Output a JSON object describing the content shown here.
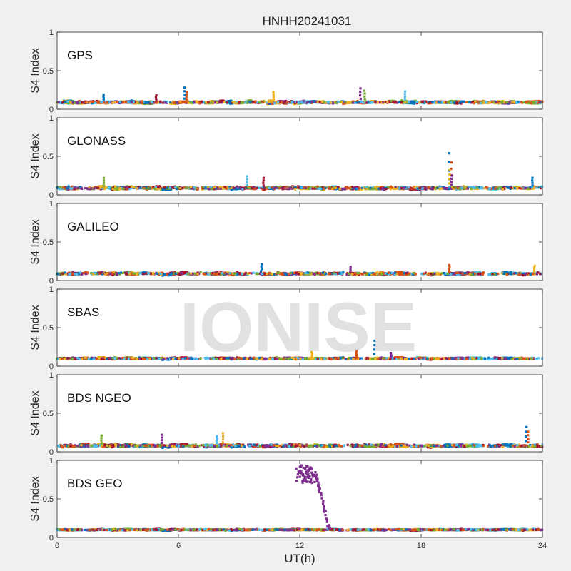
{
  "figure": {
    "title": "HNHH20241031",
    "xlabel": "UT(h)",
    "watermark": "IONISE"
  },
  "chart_data": {
    "type": "scatter",
    "xlim": [
      0,
      24
    ],
    "ylim": [
      0,
      1
    ],
    "xticks": [
      0,
      6,
      12,
      18,
      24
    ],
    "yticks": [
      0,
      0.5,
      1
    ],
    "ylabel": "S4 Index",
    "grid": false,
    "palette": [
      "#0072BD",
      "#D95319",
      "#EDB120",
      "#7E2F8E",
      "#77AC30",
      "#4DBEEE",
      "#A2142F"
    ],
    "panels": [
      {
        "name": "GPS",
        "baseline": 0.09,
        "spread": 0.035,
        "spikes": [
          [
            6.3,
            0.28
          ],
          [
            6.4,
            0.22
          ],
          [
            10.7,
            0.22
          ],
          [
            15.0,
            0.27
          ],
          [
            15.2,
            0.24
          ],
          [
            17.2,
            0.23
          ],
          [
            4.9,
            0.18
          ],
          [
            2.3,
            0.19
          ]
        ]
      },
      {
        "name": "GLONASS",
        "baseline": 0.09,
        "spread": 0.04,
        "spikes": [
          [
            19.4,
            0.54
          ],
          [
            19.5,
            0.42
          ],
          [
            19.4,
            0.32
          ],
          [
            19.5,
            0.25
          ],
          [
            2.3,
            0.22
          ],
          [
            9.4,
            0.24
          ],
          [
            10.2,
            0.22
          ],
          [
            23.5,
            0.22
          ]
        ]
      },
      {
        "name": "GALILEO",
        "baseline": 0.09,
        "spread": 0.035,
        "spikes": [
          [
            10.1,
            0.21
          ],
          [
            19.4,
            0.2
          ],
          [
            23.6,
            0.19
          ],
          [
            14.5,
            0.18
          ]
        ]
      },
      {
        "name": "SBAS",
        "baseline": 0.1,
        "spread": 0.025,
        "spikes": [
          [
            15.7,
            0.33
          ],
          [
            14.8,
            0.2
          ],
          [
            12.6,
            0.18
          ],
          [
            16.5,
            0.17
          ]
        ]
      },
      {
        "name": "BDS NGEO",
        "baseline": 0.08,
        "spread": 0.04,
        "spikes": [
          [
            23.2,
            0.32
          ],
          [
            23.3,
            0.26
          ],
          [
            8.2,
            0.24
          ],
          [
            5.2,
            0.22
          ],
          [
            2.2,
            0.21
          ],
          [
            7.9,
            0.2
          ]
        ]
      },
      {
        "name": "BDS GEO",
        "baseline": 0.1,
        "spread": 0.02,
        "burst": {
          "x_start": 11.8,
          "x_end": 13.5,
          "peak": 0.94,
          "decay_end": 0.12
        },
        "spikes": []
      }
    ]
  }
}
